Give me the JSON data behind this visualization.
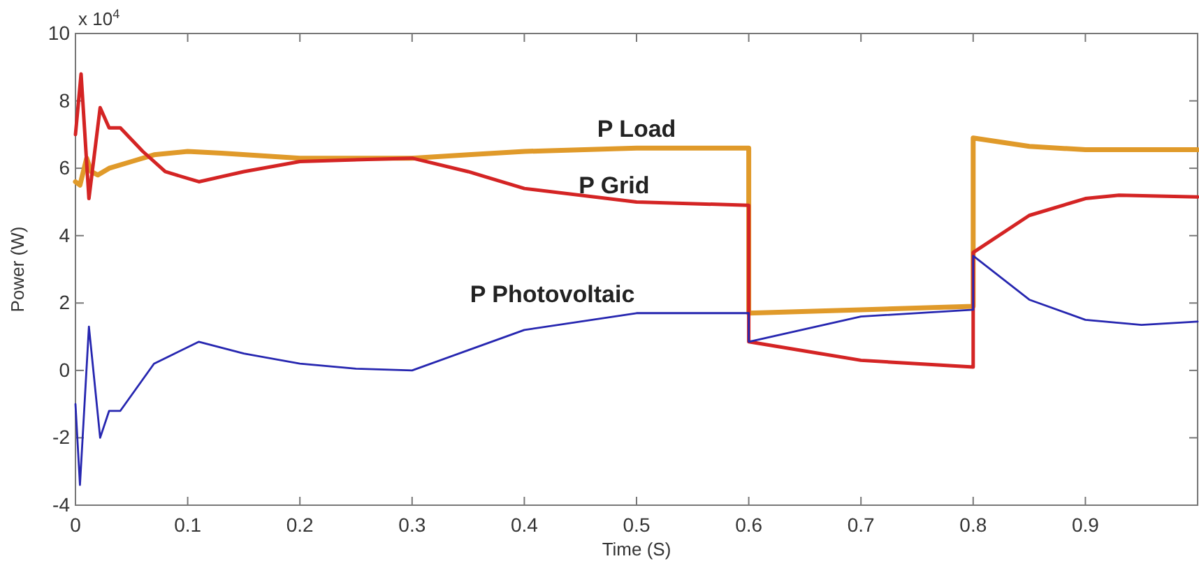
{
  "chart_data": {
    "type": "line",
    "xlabel": "Time (S)",
    "ylabel": "Power (W)",
    "annotations": [
      "x 10$^{4}$"
    ],
    "xlim": [
      0,
      1
    ],
    "xticks": [
      0,
      0.1,
      0.2,
      0.3,
      0.4,
      0.5,
      0.6,
      0.7,
      0.8,
      0.9
    ],
    "ylim": [
      -4,
      10
    ],
    "yticks": [
      -4,
      -2,
      0,
      2,
      4,
      6,
      8,
      10
    ],
    "grid": false,
    "line_style": "solid",
    "marker": "none",
    "series": [
      {
        "name": "P Load",
        "color": "#e09a2a",
        "x": [
          0,
          0.004,
          0.01,
          0.014,
          0.02,
          0.03,
          0.05,
          0.07,
          0.1,
          0.13,
          0.2,
          0.3,
          0.35,
          0.4,
          0.5,
          0.6,
          0.6,
          0.7,
          0.8,
          0.8,
          0.85,
          0.9,
          0.95,
          1
        ],
        "values": [
          5.6,
          5.5,
          6.3,
          5.9,
          5.8,
          6,
          6.2,
          6.4,
          6.5,
          6.45,
          6.3,
          6.3,
          6.4,
          6.5,
          6.6,
          6.6,
          1.7,
          1.8,
          1.9,
          6.9,
          6.65,
          6.55,
          6.55,
          6.55
        ]
      },
      {
        "name": "P Grid",
        "color": "#d42424",
        "x": [
          0,
          0.005,
          0.012,
          0.022,
          0.03,
          0.04,
          0.06,
          0.08,
          0.11,
          0.15,
          0.2,
          0.3,
          0.35,
          0.4,
          0.5,
          0.6,
          0.6,
          0.7,
          0.8,
          0.8,
          0.85,
          0.9,
          0.93,
          1
        ],
        "values": [
          7,
          8.8,
          5.1,
          7.8,
          7.2,
          7.2,
          6.5,
          5.9,
          5.6,
          5.9,
          6.2,
          6.3,
          5.9,
          5.4,
          5,
          4.9,
          0.85,
          0.3,
          0.1,
          3.5,
          4.6,
          5.1,
          5.2,
          5.15
        ]
      },
      {
        "name": "P Photovoltaic",
        "color": "#2626b0",
        "x": [
          0,
          0.004,
          0.012,
          0.022,
          0.03,
          0.04,
          0.07,
          0.11,
          0.15,
          0.2,
          0.25,
          0.3,
          0.35,
          0.4,
          0.5,
          0.6,
          0.6,
          0.7,
          0.8,
          0.8,
          0.85,
          0.9,
          0.95,
          1
        ],
        "values": [
          -1,
          -3.4,
          1.3,
          -2,
          -1.2,
          -1.2,
          0.2,
          0.85,
          0.5,
          0.2,
          0.05,
          0,
          0.6,
          1.2,
          1.7,
          1.7,
          0.85,
          1.6,
          1.8,
          3.4,
          2.1,
          1.5,
          1.35,
          1.45
        ]
      }
    ]
  }
}
